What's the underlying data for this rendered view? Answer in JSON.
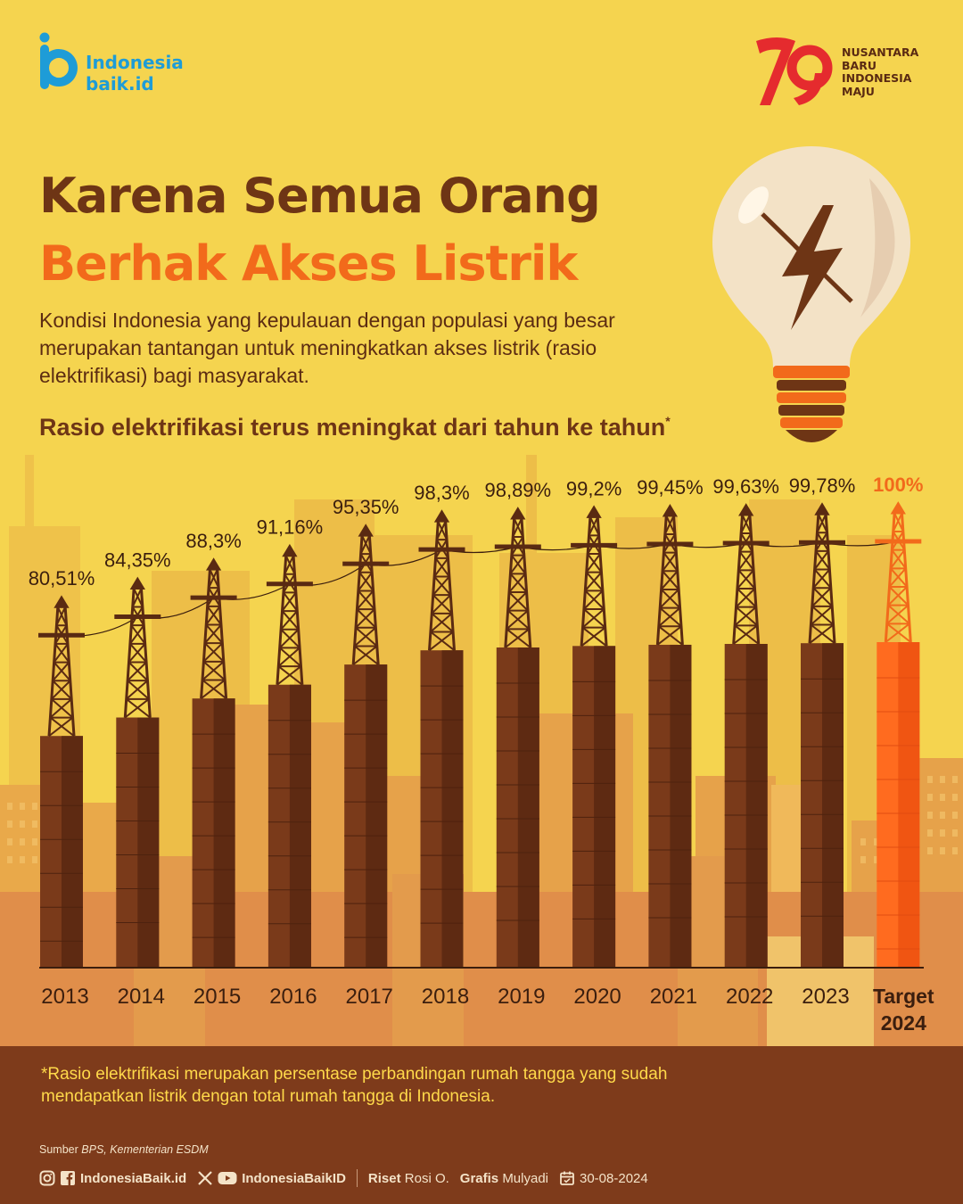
{
  "brand": {
    "line1": "Indonesia",
    "line2": "baik.id"
  },
  "anniversary": {
    "number": "79",
    "lines": [
      "NUSANTARA",
      "BARU",
      "INDONESIA",
      "MAJU"
    ]
  },
  "title": {
    "line1": "Karena Semua Orang",
    "line2": "Berhak Akses Listrik"
  },
  "intro": "Kondisi Indonesia yang kepulauan dengan populasi yang besar merupakan tantangan untuk meningkatkan akses listrik (rasio elektrifikasi) bagi masyarakat.",
  "subtitle": "Rasio elektrifikasi terus meningkat dari tahun ke tahun",
  "subtitle_mark": "*",
  "colors": {
    "background": "#F5D44F",
    "bar": "#7A3A1A",
    "bar_target": "#FF6B1F",
    "title_dark": "#6E3515",
    "title_accent": "#F26A1B",
    "footer": "#7E3B1B",
    "footnote": "#FFD94A"
  },
  "chart_data": {
    "type": "bar",
    "title": "Rasio elektrifikasi terus meningkat dari tahun ke tahun",
    "categories": [
      "2013",
      "2014",
      "2015",
      "2016",
      "2017",
      "2018",
      "2019",
      "2020",
      "2021",
      "2022",
      "2023",
      "Target 2024"
    ],
    "values": [
      80.51,
      84.35,
      88.3,
      91.16,
      95.35,
      98.3,
      98.89,
      99.2,
      99.45,
      99.63,
      99.78,
      100
    ],
    "labels": [
      "80,51%",
      "84,35%",
      "88,3%",
      "91,16%",
      "95,35%",
      "98,3%",
      "98,89%",
      "99,2%",
      "99,45%",
      "99,63%",
      "99,78%",
      "100%"
    ],
    "highlight": "Target 2024",
    "unit": "%",
    "grid": false
  },
  "footnote": "*Rasio elektrifikasi merupakan persentase perbandingan rumah tangga yang sudah mendapatkan listrik dengan total rumah tangga di Indonesia.",
  "source": {
    "label": "Sumber",
    "value": "BPS, Kementerian ESDM"
  },
  "credits": {
    "handle1": "IndonesiaBaik.id",
    "handle2": "IndonesiaBaikID",
    "riset_label": "Riset",
    "riset_name": "Rosi O.",
    "grafis_label": "Grafis",
    "grafis_name": "Mulyadi",
    "date": "30-08-2024"
  },
  "icons": [
    "instagram-icon",
    "facebook-icon",
    "x-icon",
    "youtube-icon",
    "calendar-icon",
    "lightbulb-icon",
    "lightning-icon",
    "transmission-tower-icon"
  ]
}
